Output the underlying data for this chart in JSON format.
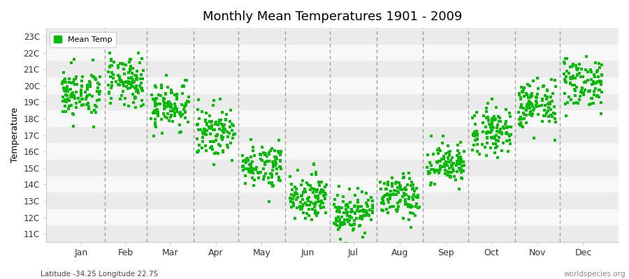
{
  "title": "Monthly Mean Temperatures 1901 - 2009",
  "ylabel": "Temperature",
  "subtitle": "Latitude -34.25 Longitude 22.75",
  "watermark": "worldspecies.org",
  "ytick_labels": [
    "11C",
    "12C",
    "13C",
    "14C",
    "15C",
    "16C",
    "17C",
    "18C",
    "19C",
    "20C",
    "21C",
    "22C",
    "23C"
  ],
  "ytick_values": [
    11,
    12,
    13,
    14,
    15,
    16,
    17,
    18,
    19,
    20,
    21,
    22,
    23
  ],
  "ylim": [
    10.5,
    23.5
  ],
  "months": [
    "Jan",
    "Feb",
    "Mar",
    "Apr",
    "May",
    "Jun",
    "Jul",
    "Aug",
    "Sep",
    "Oct",
    "Nov",
    "Dec"
  ],
  "dot_color": "#00bb00",
  "dot_size": 6,
  "background_color": "#ffffff",
  "stripe_colors": [
    "#ebebeb",
    "#f8f8f8"
  ],
  "legend_label": "Mean Temp",
  "year_start": 1901,
  "year_end": 2009,
  "monthly_mean": [
    19.5,
    20.2,
    18.8,
    17.2,
    15.2,
    13.3,
    12.3,
    13.2,
    15.2,
    17.3,
    18.8,
    20.2
  ],
  "monthly_std": [
    0.75,
    0.75,
    0.75,
    0.75,
    0.65,
    0.65,
    0.65,
    0.65,
    0.65,
    0.7,
    0.75,
    0.8
  ]
}
